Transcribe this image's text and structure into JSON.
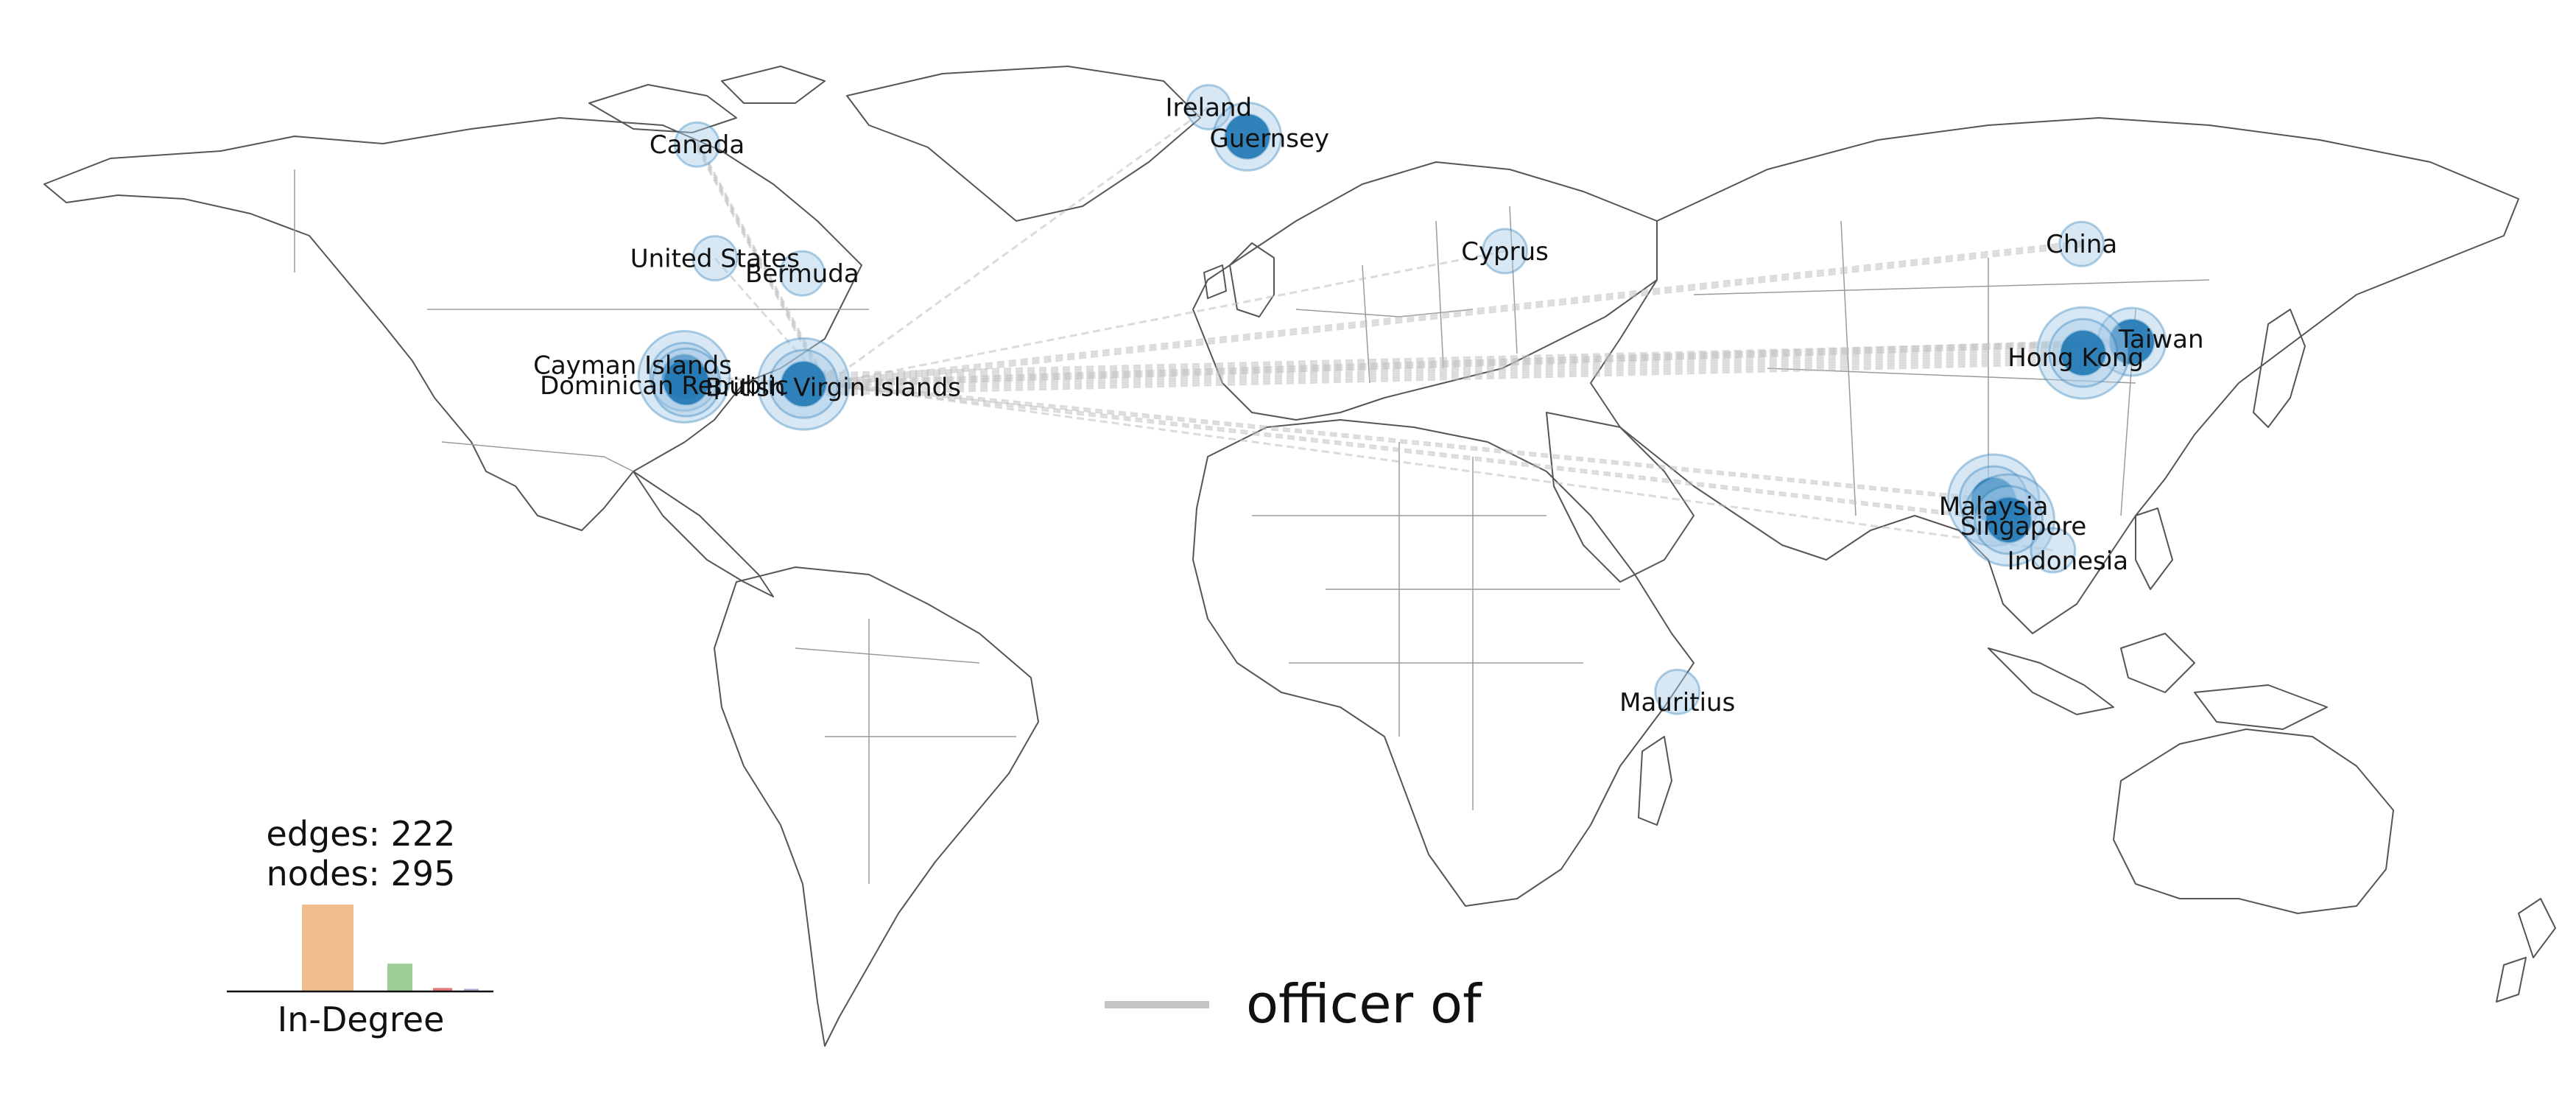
{
  "colors": {
    "node": "#1f77b4",
    "node_halo": "#a9c9e6",
    "edge": "#bdbdbd",
    "coast": "#555555",
    "border": "#9a9a9a",
    "bar1": "#f0bd8e",
    "bar2": "#9fcf98",
    "bar3": "#e07a7a",
    "bar4": "#b6a7d4"
  },
  "stats": {
    "edges": "edges: 222",
    "nodes": "nodes: 295"
  },
  "histogram": {
    "title": "In-Degree",
    "values": [
      1.0,
      0.32,
      0.04,
      0.03
    ]
  },
  "legend": {
    "label": "officer of",
    "icon": "line-swatch"
  },
  "places": [
    {
      "id": "canada",
      "label": "Canada",
      "lon": -79.5,
      "lat": 48.5,
      "size": 1
    },
    {
      "id": "united-states",
      "label": "United States",
      "lon": -77.0,
      "lat": 34.2,
      "size": 1
    },
    {
      "id": "bermuda",
      "label": "Bermuda",
      "lon": -64.8,
      "lat": 32.3,
      "size": 1
    },
    {
      "id": "cayman-islands",
      "label": "Cayman Islands",
      "lon": -81.3,
      "lat": 19.3,
      "size": 3
    },
    {
      "id": "dominican-republic",
      "label": "Dominican Republic",
      "lon": -81.0,
      "lat": 18.6,
      "size": 2
    },
    {
      "id": "british-virgin-islands",
      "label": "British Virgin Islands",
      "lon": -64.6,
      "lat": 18.4,
      "size": 3
    },
    {
      "id": "ireland",
      "label": "Ireland",
      "lon": -8.0,
      "lat": 53.2,
      "size": 1
    },
    {
      "id": "guernsey",
      "label": "Guernsey",
      "lon": -2.6,
      "lat": 49.5,
      "size": 2
    },
    {
      "id": "cyprus",
      "label": "Cyprus",
      "lon": 33.4,
      "lat": 35.1,
      "size": 1
    },
    {
      "id": "china",
      "label": "China",
      "lon": 114.0,
      "lat": 36.0,
      "size": 1
    },
    {
      "id": "taiwan",
      "label": "Taiwan",
      "lon": 121.0,
      "lat": 23.7,
      "size": 2
    },
    {
      "id": "hong-kong",
      "label": "Hong Kong",
      "lon": 114.2,
      "lat": 22.3,
      "size": 3
    },
    {
      "id": "malaysia",
      "label": "Malaysia",
      "lon": 101.7,
      "lat": 3.8,
      "size": 3
    },
    {
      "id": "singapore",
      "label": "Singapore",
      "lon": 103.8,
      "lat": 1.3,
      "size": 3
    },
    {
      "id": "indonesia",
      "label": "Indonesia",
      "lon": 110.0,
      "lat": -2.5,
      "size": 1
    },
    {
      "id": "mauritius",
      "label": "Mauritius",
      "lon": 57.5,
      "lat": -20.3,
      "size": 1
    }
  ],
  "flows": [
    {
      "from": "canada",
      "to": "british-virgin-islands",
      "weight": 4
    },
    {
      "from": "united-states",
      "to": "british-virgin-islands",
      "weight": 1
    },
    {
      "from": "ireland",
      "to": "british-virgin-islands",
      "weight": 1
    },
    {
      "from": "china",
      "to": "british-virgin-islands",
      "weight": 3
    },
    {
      "from": "hong-kong",
      "to": "british-virgin-islands",
      "weight": 10
    },
    {
      "from": "taiwan",
      "to": "british-virgin-islands",
      "weight": 3
    },
    {
      "from": "malaysia",
      "to": "british-virgin-islands",
      "weight": 2
    },
    {
      "from": "singapore",
      "to": "british-virgin-islands",
      "weight": 2
    },
    {
      "from": "indonesia",
      "to": "british-virgin-islands",
      "weight": 1
    },
    {
      "from": "cyprus",
      "to": "british-virgin-islands",
      "weight": 1
    },
    {
      "from": "british-virgin-islands",
      "to": "cayman-islands",
      "weight": 1
    }
  ]
}
